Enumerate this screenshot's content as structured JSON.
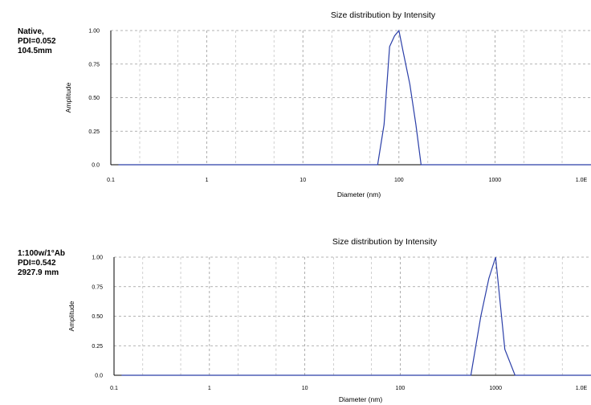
{
  "chart_data": [
    {
      "type": "line",
      "title": "Size distribution by Intensity",
      "xlabel": "Diameter (nm)",
      "ylabel": "Amplitude",
      "x_scale": "log",
      "xlim": [
        0.1,
        10000
      ],
      "ylim": [
        0,
        1.0
      ],
      "x_ticks": [
        "0.1",
        "1",
        "10",
        "100",
        "1000",
        "1.0E"
      ],
      "y_ticks": [
        "0.0",
        "0.25",
        "0.50",
        "0.75",
        "1.00"
      ],
      "grid": true,
      "annotation": [
        "Native,",
        "PDI=0.052",
        "104.5mm"
      ],
      "color": "#2b3fa8",
      "series": [
        {
          "x": [
            0.12,
            1,
            10,
            50,
            60,
            70,
            80,
            90,
            100,
            110,
            130,
            150,
            170,
            200,
            1000,
            10000
          ],
          "y": [
            0,
            0,
            0,
            0,
            0,
            0.3,
            0.88,
            0.96,
            1.0,
            0.85,
            0.6,
            0.3,
            0,
            0,
            0,
            0
          ]
        }
      ]
    },
    {
      "type": "line",
      "title": "Size distribution by Intensity",
      "xlabel": "Diameter (nm)",
      "ylabel": "Amplitude",
      "x_scale": "log",
      "xlim": [
        0.1,
        10000
      ],
      "ylim": [
        0,
        1.0
      ],
      "x_ticks": [
        "0.1",
        "1",
        "10",
        "100",
        "1000",
        "1.0E"
      ],
      "y_ticks": [
        "0.0",
        "0.25",
        "0.50",
        "0.75",
        "1.00"
      ],
      "grid": true,
      "annotation": [
        "1:100w/1°Ab",
        "PDI=0.542",
        "2927.9 mm"
      ],
      "color": "#2b3fa8",
      "series": [
        {
          "x": [
            0.12,
            1,
            10,
            100,
            500,
            550,
            700,
            850,
            1000,
            1250,
            1600,
            2000,
            5000,
            10000
          ],
          "y": [
            0,
            0,
            0,
            0,
            0,
            0,
            0.5,
            0.82,
            1.0,
            0.22,
            0,
            0,
            0,
            0
          ]
        }
      ]
    }
  ]
}
